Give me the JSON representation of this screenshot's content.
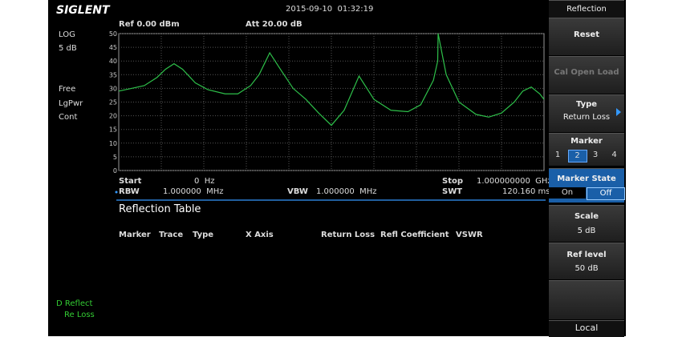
{
  "header": {
    "logo": "SIGLENT",
    "datetime": "2015-09-10  01:32:19"
  },
  "left_panel": {
    "scale_type": "LOG",
    "scale_div": "5 dB",
    "trigger": "Free",
    "detector": "LgPwr",
    "sweep": "Cont",
    "trace_label": "D Reflect",
    "trace_mode": "Re Loss"
  },
  "plot": {
    "ref": "Ref 0.00 dBm",
    "att": "Att 20.00 dB",
    "ylim": [
      0,
      50
    ],
    "yticks": [
      0,
      5,
      10,
      15,
      20,
      25,
      30,
      35,
      40,
      45,
      50
    ],
    "xlim": [
      0,
      1
    ],
    "grid": true,
    "trace_color": "#2ec04a",
    "trace": {
      "x": [
        0,
        0.03,
        0.06,
        0.09,
        0.11,
        0.13,
        0.15,
        0.18,
        0.21,
        0.25,
        0.28,
        0.31,
        0.33,
        0.355,
        0.38,
        0.41,
        0.44,
        0.47,
        0.5,
        0.53,
        0.565,
        0.6,
        0.64,
        0.68,
        0.71,
        0.74,
        0.75,
        0.751,
        0.77,
        0.8,
        0.84,
        0.87,
        0.9,
        0.93,
        0.95,
        0.97,
        0.99,
        1
      ],
      "values": [
        29,
        30,
        31,
        34,
        37,
        39,
        37,
        32,
        29.5,
        28,
        28,
        31,
        35,
        43,
        37,
        30,
        26,
        21,
        16.5,
        22,
        34.5,
        26,
        22,
        21.5,
        24,
        33,
        40,
        50,
        35,
        25,
        20.5,
        19.5,
        21,
        25,
        29,
        30.5,
        28,
        26
      ]
    }
  },
  "sweep_info": {
    "start_label": "Start",
    "start_value": "0  Hz",
    "stop_label": "Stop",
    "stop_value": "1.000000000  GHz",
    "rbw_label": "RBW",
    "rbw_value": "1.000000  MHz",
    "vbw_label": "VBW",
    "vbw_value": "1.000000  MHz",
    "swt_label": "SWT",
    "swt_value": "120.160 ms"
  },
  "table": {
    "title": "Reflection Table",
    "columns": [
      "Marker",
      "Trace",
      "Type",
      "X Axis",
      "Return Loss",
      "Refl Coefficient",
      "VSWR"
    ]
  },
  "softkeys": {
    "title": "Reflection",
    "reset": "Reset",
    "cal": "Cal Open Load",
    "type_label": "Type",
    "type_value": "Return Loss",
    "marker_label": "Marker",
    "markers": [
      "1",
      "2",
      "3",
      "4"
    ],
    "marker_selected": 1,
    "state_label": "Marker State",
    "states": [
      "On",
      "Off"
    ],
    "state_selected": 1,
    "scale_label": "Scale",
    "scale_value": "5 dB",
    "ref_label": "Ref level",
    "ref_value": "50 dB",
    "local": "Local"
  }
}
